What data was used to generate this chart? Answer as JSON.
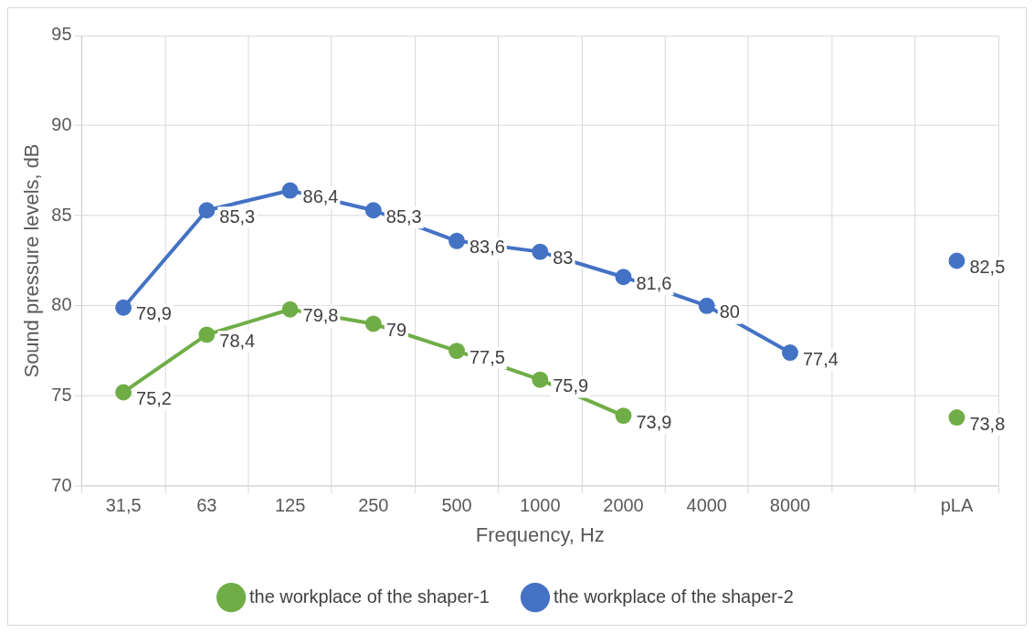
{
  "chart_data": {
    "type": "line",
    "xlabel": "Frequency, Hz",
    "ylabel": "Sound pressure levels, dB",
    "categories": [
      "31,5",
      "63",
      "125",
      "250",
      "500",
      "1000",
      "2000",
      "4000",
      "8000",
      null,
      "pLA"
    ],
    "series": [
      {
        "name": "the workplace of the shaper-1",
        "color": "#70ad47",
        "values": [
          75.2,
          78.4,
          79.8,
          79,
          77.5,
          75.9,
          73.9,
          null,
          null,
          null,
          73.8
        ],
        "value_labels": [
          "75,2",
          "78,4",
          "79,8",
          "79",
          "77,5",
          "75,9",
          "73,9",
          null,
          null,
          null,
          "73,8"
        ]
      },
      {
        "name": "the workplace of the shaper-2",
        "color": "#4472c4",
        "values": [
          79.9,
          85.3,
          86.4,
          85.3,
          83.6,
          83,
          81.6,
          80,
          77.4,
          null,
          82.5
        ],
        "value_labels": [
          "79,9",
          "85,3",
          "86,4",
          "85,3",
          "83,6",
          "83",
          "81,6",
          "80",
          "77,4",
          null,
          "82,5"
        ]
      }
    ],
    "ylim": [
      70,
      95
    ],
    "yticks": [
      70,
      75,
      80,
      85,
      90,
      95
    ],
    "grid": true,
    "legend": "bottom",
    "marker": "circle",
    "line_style": "solid"
  }
}
